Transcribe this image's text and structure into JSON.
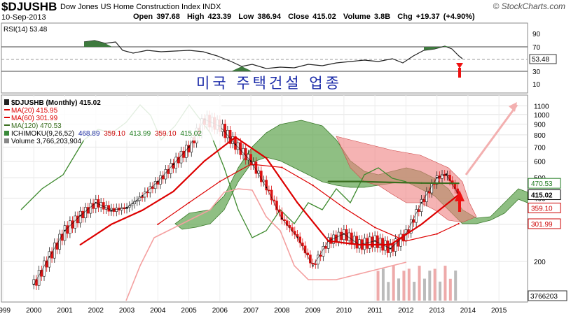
{
  "header": {
    "symbol": "$DJUSHB",
    "index_name": "Dow Jones US Home Construction Index",
    "exchange": "INDX",
    "date": "10-Sep-2013",
    "open_label": "Open",
    "open": "397.68",
    "high_label": "High",
    "high": "423.39",
    "low_label": "Low",
    "low": "386.94",
    "close_label": "Close",
    "close": "415.02",
    "volume_label": "Volume",
    "volume": "3.8B",
    "chg_label": "Chg",
    "chg": "+19.37 (+4.90%)",
    "brand": "© StockCharts.com"
  },
  "rsi_panel": {
    "label": "RSI(14) 53.48",
    "ticks": [
      "90",
      "70",
      "50",
      "30",
      "10"
    ],
    "value_badge": "53.48"
  },
  "annotation": {
    "korean_title": "미국 주택건설 업종"
  },
  "price_panel": {
    "legend": [
      {
        "text": "$DJUSHB (Monthly) 415.02",
        "color": "#000000"
      },
      {
        "text": "MA(20) 415.95",
        "color": "#dd0000"
      },
      {
        "text": "MA(60) 301.99",
        "color": "#dd0000"
      },
      {
        "text": "MA(120) 470.53",
        "color": "#3a6e1f"
      },
      {
        "text": "ICHIMOKU(9,26,52)",
        "color": "#000000"
      },
      {
        "text": "Volume 3,766,203,904",
        "color": "#000000"
      }
    ],
    "ichimoku_values": [
      {
        "text": "468.89",
        "color": "#1a2aa0"
      },
      {
        "text": "359.10",
        "color": "#cc0000"
      },
      {
        "text": "413.99",
        "color": "#1a7a1a"
      },
      {
        "text": "359.10",
        "color": "#cc0000"
      },
      {
        "text": "415.02",
        "color": "#1a7a1a"
      }
    ],
    "y_ticks": [
      "1100",
      "1000",
      "900",
      "800",
      "700",
      "600",
      "500",
      "400",
      "300",
      "200"
    ],
    "badges": [
      {
        "text": "470.53",
        "kind": "green",
        "value": 470.53
      },
      {
        "text": "415.02",
        "kind": "black",
        "value": 415.02
      },
      {
        "text": "359.10",
        "kind": "red",
        "value": 359.1
      },
      {
        "text": "301.99",
        "kind": "red",
        "value": 301.99
      }
    ],
    "volume_badge": "3766203"
  },
  "x_axis": {
    "labels": [
      "1999",
      "2000",
      "2001",
      "2002",
      "2003",
      "2004",
      "2005",
      "2006",
      "2007",
      "2008",
      "2009",
      "2010",
      "2011",
      "2012",
      "2013",
      "2014",
      "2015"
    ]
  },
  "chart_data": {
    "type": "line",
    "title": "$DJUSHB (Monthly) 415.02",
    "y_scale": "log",
    "ylim": [
      130,
      1200
    ],
    "x_range": [
      1999.0,
      2015.9
    ],
    "series": [
      {
        "name": "$DJUSHB (Monthly) 415.02",
        "color": "#000000",
        "x": [
          2000.0,
          2000.5,
          2001.0,
          2001.5,
          2002.0,
          2002.5,
          2003.0,
          2003.5,
          2004.0,
          2004.5,
          2005.0,
          2005.5,
          2006.0,
          2006.5,
          2007.0,
          2007.5,
          2008.0,
          2008.5,
          2009.0,
          2009.5,
          2010.0,
          2010.5,
          2011.0,
          2011.5,
          2012.0,
          2012.5,
          2013.0,
          2013.3,
          2013.7
        ],
        "values": [
          155,
          210,
          280,
          330,
          380,
          350,
          360,
          410,
          480,
          580,
          700,
          950,
          880,
          720,
          600,
          450,
          320,
          260,
          190,
          250,
          270,
          240,
          250,
          230,
          270,
          380,
          500,
          520,
          415
        ]
      },
      {
        "name": "MA(20) 415.95",
        "color": "#dd0000",
        "x": [
          2001.5,
          2002.5,
          2003.5,
          2004.5,
          2005.5,
          2006.5,
          2007.5,
          2008.5,
          2009.5,
          2010.5,
          2011.5,
          2012.5,
          2013.7
        ],
        "values": [
          240,
          300,
          350,
          430,
          600,
          780,
          620,
          380,
          250,
          240,
          240,
          300,
          415
        ]
      },
      {
        "name": "MA(60) 301.99",
        "color": "#dd0000",
        "x": [
          2004.0,
          2005.0,
          2006.0,
          2007.0,
          2008.0,
          2009.0,
          2010.0,
          2011.0,
          2012.0,
          2013.0,
          2013.7
        ],
        "values": [
          300,
          380,
          480,
          580,
          560,
          460,
          360,
          290,
          250,
          270,
          302
        ]
      },
      {
        "name": "MA(120) 470.53",
        "color": "#3a6e1f",
        "x": [
          2009.5,
          2010.5,
          2011.5,
          2012.5,
          2013.7
        ],
        "values": [
          480,
          480,
          475,
          472,
          470.53
        ]
      }
    ]
  }
}
